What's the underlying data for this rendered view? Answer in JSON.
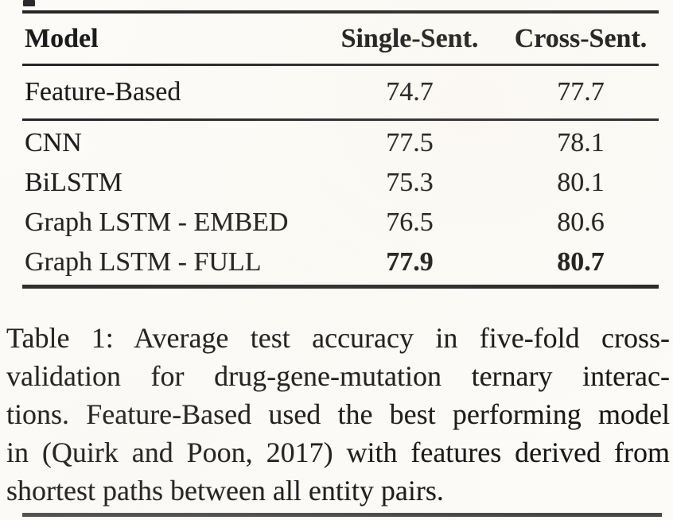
{
  "table": {
    "columns": [
      "Model",
      "Single-Sent.",
      "Cross-Sent."
    ],
    "rows": [
      {
        "model": "Feature-Based",
        "single_sent": "74.7",
        "cross_sent": "77.7"
      },
      {
        "model": "CNN",
        "single_sent": "77.5",
        "cross_sent": "78.1"
      },
      {
        "model": "BiLSTM",
        "single_sent": "75.3",
        "cross_sent": "80.1"
      },
      {
        "model": "Graph LSTM - EMBED",
        "single_sent": "76.5",
        "cross_sent": "80.6"
      },
      {
        "model": "Graph LSTM - FULL",
        "single_sent": "77.9",
        "cross_sent": "80.7"
      }
    ],
    "bold_row_model": "Graph LSTM - FULL"
  },
  "caption": {
    "lines": [
      "Table 1:  Average test accuracy in five-fold cross-",
      "validation for drug-gene-mutation ternary interac-",
      "tions. Feature-Based used the best performing model",
      "in (Quirk and Poon, 2017) with features derived from",
      "shortest paths between all entity pairs."
    ],
    "full_text": "Table 1: Average test accuracy in five-fold cross-validation for drug-gene-mutation ternary interactions. Feature-Based used the best performing model in (Quirk and Poon, 2017) with features derived from shortest paths between all entity pairs."
  }
}
